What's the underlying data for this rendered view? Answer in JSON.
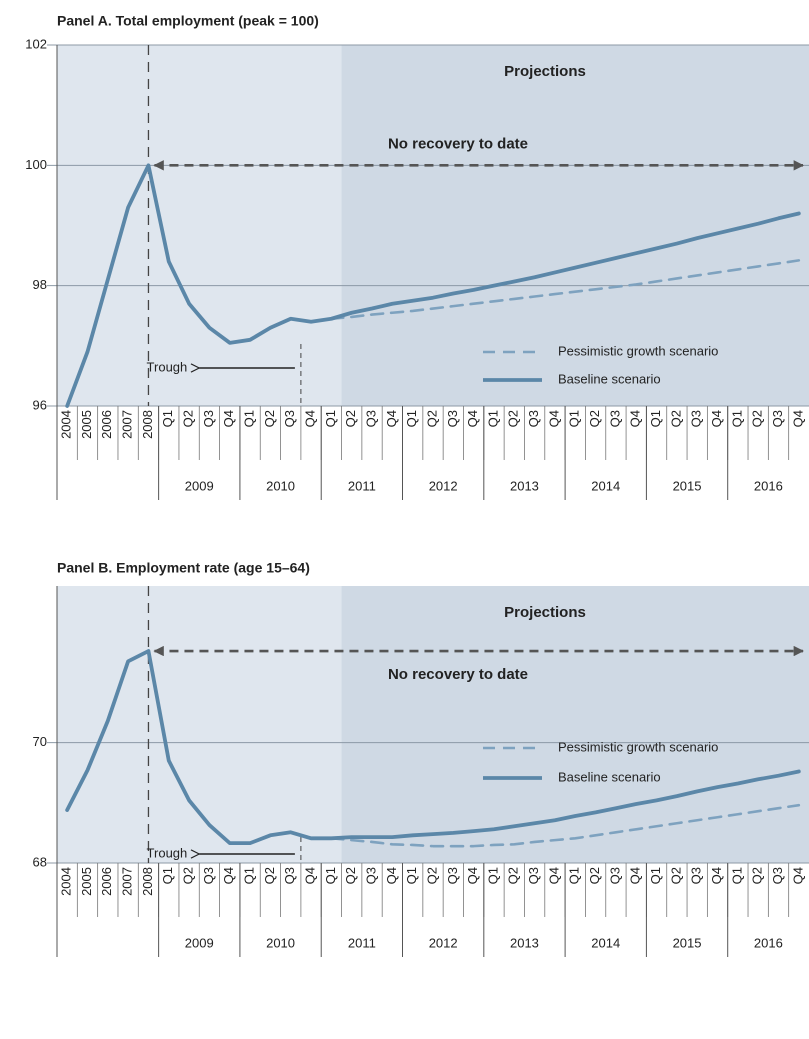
{
  "chart_data": [
    {
      "type": "line",
      "title": "Panel A.  Total employment (peak = 100)",
      "categories": [
        "2004",
        "2005",
        "2006",
        "2007",
        "2008",
        "Q1",
        "Q2",
        "Q3",
        "Q4",
        "Q1",
        "Q2",
        "Q3",
        "Q4",
        "Q1",
        "Q2",
        "Q3",
        "Q4",
        "Q1",
        "Q2",
        "Q3",
        "Q4",
        "Q1",
        "Q2",
        "Q3",
        "Q4",
        "Q1",
        "Q2",
        "Q3",
        "Q4",
        "Q1",
        "Q2",
        "Q3",
        "Q4",
        "Q1",
        "Q2",
        "Q3",
        "Q4"
      ],
      "year_groups": [
        "2009",
        "2010",
        "2011",
        "2012",
        "2013",
        "2014",
        "2015",
        "2016"
      ],
      "annotations": {
        "projections": "Projections",
        "no_recovery": "No recovery to date",
        "trough": "Trough"
      },
      "series": [
        {
          "name": "Pessimistic growth scenario",
          "color": "#7ea2bf",
          "style": "dashed",
          "values": [
            null,
            null,
            null,
            null,
            null,
            null,
            null,
            null,
            null,
            null,
            null,
            null,
            null,
            97.45,
            97.48,
            97.52,
            97.55,
            97.58,
            97.62,
            97.66,
            97.7,
            97.74,
            97.78,
            97.82,
            97.86,
            97.9,
            97.94,
            97.98,
            98.02,
            98.07,
            98.12,
            98.17,
            98.22,
            98.27,
            98.32,
            98.37,
            98.42
          ]
        },
        {
          "name": "Baseline scenario",
          "color": "#5b87a8",
          "style": "solid",
          "values": [
            96.0,
            96.9,
            98.1,
            99.3,
            100.0,
            98.4,
            97.7,
            97.3,
            97.05,
            97.1,
            97.3,
            97.45,
            97.4,
            97.45,
            97.55,
            97.62,
            97.7,
            97.75,
            97.8,
            97.87,
            97.93,
            98.0,
            98.07,
            98.14,
            98.22,
            98.3,
            98.38,
            98.46,
            98.54,
            98.62,
            98.7,
            98.79,
            98.87,
            98.95,
            99.03,
            99.12,
            99.2
          ]
        }
      ],
      "ylim": [
        96,
        102
      ],
      "yticks": [
        96,
        98,
        100,
        102
      ],
      "grid": true
    },
    {
      "type": "line",
      "title": "Panel B.  Employment rate (age 15–64)",
      "categories": [
        "2004",
        "2005",
        "2006",
        "2007",
        "2008",
        "Q1",
        "Q2",
        "Q3",
        "Q4",
        "Q1",
        "Q2",
        "Q3",
        "Q4",
        "Q1",
        "Q2",
        "Q3",
        "Q4",
        "Q1",
        "Q2",
        "Q3",
        "Q4",
        "Q1",
        "Q2",
        "Q3",
        "Q4",
        "Q1",
        "Q2",
        "Q3",
        "Q4",
        "Q1",
        "Q2",
        "Q3",
        "Q4",
        "Q1",
        "Q2",
        "Q3",
        "Q4"
      ],
      "year_groups": [
        "2009",
        "2010",
        "2011",
        "2012",
        "2013",
        "2014",
        "2015",
        "2016"
      ],
      "annotations": {
        "projections": "Projections",
        "no_recovery": "No recovery to date",
        "trough": "Trough"
      },
      "series": [
        {
          "name": "Pessimistic growth scenario",
          "color": "#7ea2bf",
          "style": "dashed",
          "values": [
            null,
            null,
            null,
            null,
            null,
            null,
            null,
            null,
            null,
            null,
            null,
            null,
            null,
            68.41,
            68.38,
            68.35,
            68.31,
            68.3,
            68.28,
            68.28,
            68.28,
            68.3,
            68.31,
            68.35,
            68.38,
            68.41,
            68.46,
            68.51,
            68.56,
            68.61,
            68.66,
            68.71,
            68.76,
            68.81,
            68.86,
            68.91,
            68.96
          ]
        },
        {
          "name": "Baseline scenario",
          "color": "#5b87a8",
          "style": "solid",
          "values": [
            68.88,
            69.54,
            70.36,
            71.35,
            71.52,
            69.7,
            69.04,
            68.63,
            68.33,
            68.33,
            68.46,
            68.51,
            68.41,
            68.41,
            68.43,
            68.43,
            68.43,
            68.46,
            68.48,
            68.5,
            68.53,
            68.56,
            68.61,
            68.66,
            68.71,
            68.78,
            68.84,
            68.91,
            68.98,
            69.04,
            69.11,
            69.19,
            69.26,
            69.32,
            69.39,
            69.45,
            69.52
          ]
        }
      ],
      "ylim": [
        68,
        72.6
      ],
      "yticks": [
        68,
        70
      ],
      "grid": true
    }
  ]
}
